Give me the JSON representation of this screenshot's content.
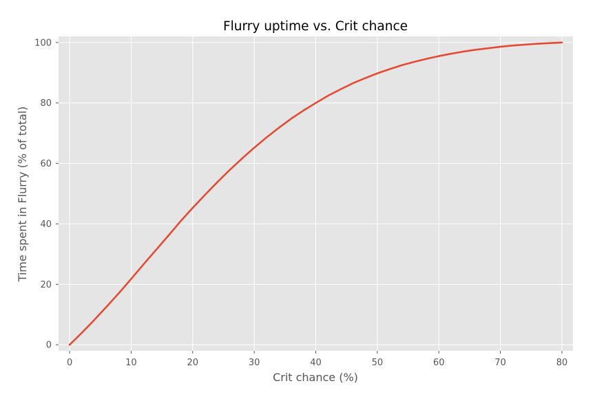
{
  "colors": {
    "figure_background": "#ffffff",
    "axes_background": "#e5e5e5",
    "grid": "#ffffff",
    "line": "#e24a33",
    "text": "#555555",
    "title_text": "#000000"
  },
  "chart_data": {
    "type": "line",
    "title": "Flurry uptime  vs.  Crit chance",
    "xlabel": "Crit chance  (%)",
    "ylabel": "Time spent in Flurry  (% of total)",
    "xlim": [
      -1.8,
      81.8
    ],
    "ylim": [
      -2,
      102
    ],
    "xticks": [
      0,
      10,
      20,
      30,
      40,
      50,
      60,
      70,
      80
    ],
    "yticks": [
      0,
      20,
      40,
      60,
      80,
      100
    ],
    "grid": true,
    "legend": "none",
    "series": [
      {
        "color": "#e24a33",
        "x": [
          0,
          2,
          4,
          6,
          8,
          10,
          12,
          14,
          16,
          18,
          20,
          22,
          24,
          26,
          28,
          30,
          32,
          34,
          36,
          38,
          40,
          42,
          44,
          46,
          48,
          50,
          52,
          54,
          56,
          58,
          60,
          62,
          64,
          66,
          68,
          70,
          72,
          74,
          76,
          78,
          80
        ],
        "y": [
          0,
          4.0,
          8.2,
          12.6,
          17.1,
          21.8,
          26.6,
          31.3,
          36.0,
          40.8,
          45.3,
          49.6,
          53.8,
          57.8,
          61.6,
          65.2,
          68.6,
          71.8,
          74.8,
          77.5,
          80.0,
          82.4,
          84.5,
          86.5,
          88.2,
          89.8,
          91.2,
          92.5,
          93.6,
          94.6,
          95.5,
          96.3,
          97.0,
          97.6,
          98.1,
          98.6,
          99.0,
          99.3,
          99.6,
          99.8,
          100.0
        ]
      }
    ]
  }
}
